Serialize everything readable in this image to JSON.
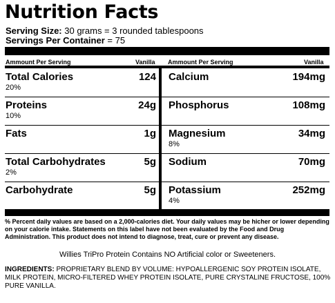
{
  "title": "Nutrition Facts",
  "serving": {
    "size_label": "Serving Size:",
    "size_value": " 30 grams = 3 rounded tablespoons",
    "container_label": "Servings Per Container",
    "container_value": " = 75"
  },
  "columns": {
    "left_header": "Ammount Per Serving",
    "left_variant": "Vanilla",
    "right_header": "Ammount Per Serving",
    "right_variant": "Vanilla"
  },
  "left_rows": [
    {
      "name": "Total Calories",
      "percent": "20%",
      "value": "124"
    },
    {
      "name": "Proteins",
      "percent": "10%",
      "value": "24g"
    },
    {
      "name": "Fats",
      "percent": "",
      "value": "1g"
    },
    {
      "name": "Total Carbohydrates",
      "percent": "2%",
      "value": "5g"
    },
    {
      "name": "Carbohydrate",
      "percent": "",
      "value": "5g"
    }
  ],
  "right_rows": [
    {
      "name": "Calcium",
      "percent": "",
      "value": "194mg"
    },
    {
      "name": "Phosphorus",
      "percent": "",
      "value": "108mg"
    },
    {
      "name": "Magnesium",
      "percent": "8%",
      "value": "34mg"
    },
    {
      "name": "Sodium",
      "percent": "",
      "value": "70mg"
    },
    {
      "name": "Potassium",
      "percent": "4%",
      "value": "252mg"
    }
  ],
  "footnote": "% Percent daily values are based on a 2,000-calories diet. Your daily values may be hicher or lower depending on your calorie intake. Statements on this label have not been evaluated by the Food and Drug Administration. This product does not intend to diagnose, treat, cure or prevent any disease.",
  "notice": "Willies TriPro Protein Contains NO Artificial color or Sweeteners.",
  "ingredients": {
    "label": "INGREDIENTS:",
    "text": " PROPRIETARY BLEND BY VOLUME: HYPOALLERGENIC SOY PROTEIN ISOLATE, MILK PROTEIN, MICRO-FILTERED WHEY PROTEIN ISOLATE, PURE CRYSTALINE FRUCTOSE, 100% PURE VANILLA."
  }
}
